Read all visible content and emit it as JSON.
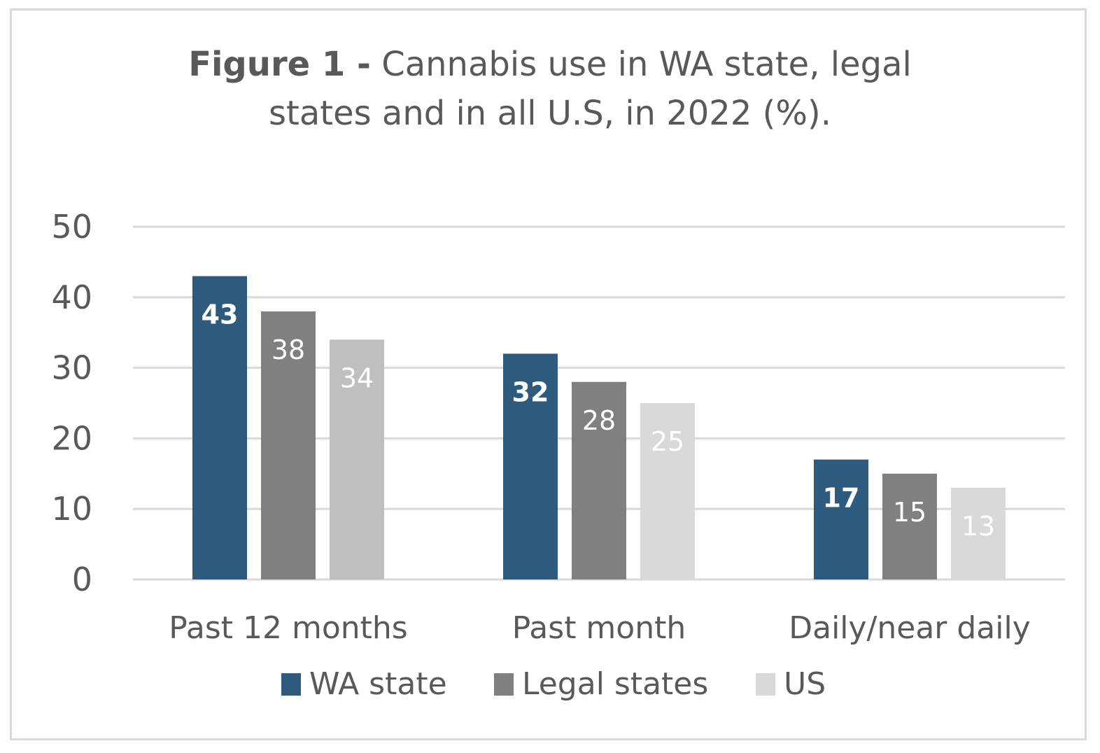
{
  "chart_data": {
    "type": "bar",
    "title_bold": "Figure 1 -",
    "title_line1_rest": " Cannabis use in WA state, legal",
    "title_line2": "states and in all U.S, in 2022 (%).",
    "categories": [
      "Past 12 months",
      "Past month",
      "Daily/near daily"
    ],
    "series": [
      {
        "name": "WA state",
        "values": [
          43,
          32,
          17
        ],
        "color": "#2e5b7d",
        "label_bold": true
      },
      {
        "name": "Legal states",
        "values": [
          38,
          28,
          15
        ],
        "color": "#808080",
        "label_bold": false
      },
      {
        "name": "US",
        "values": [
          34,
          25,
          13
        ],
        "color": "#bfbfbf",
        "color_alt": "#d9d9d9",
        "label_bold": false
      }
    ],
    "yticks": [
      0,
      10,
      20,
      30,
      40,
      50
    ],
    "ylim": [
      0,
      50
    ],
    "grid": true,
    "gridline_color": "#d9d9d9",
    "legend_position": "bottom"
  }
}
